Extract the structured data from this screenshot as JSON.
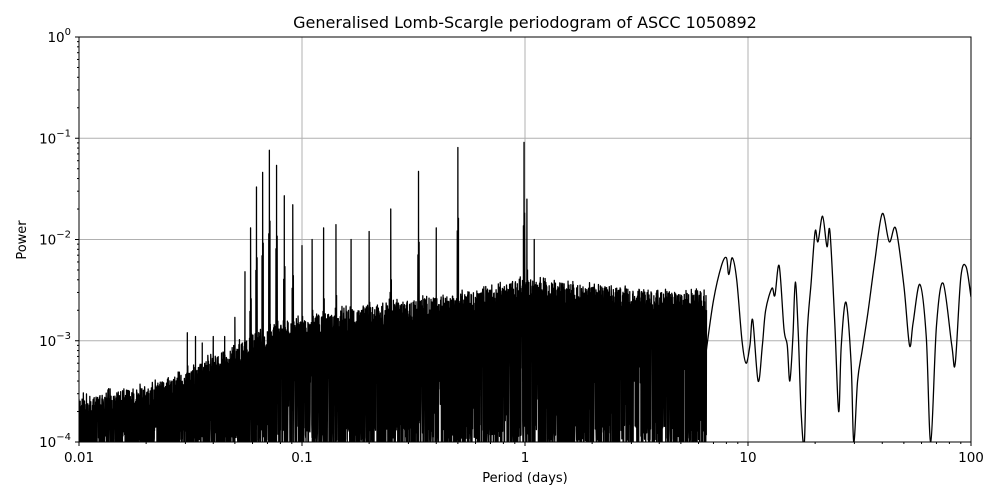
{
  "chart_data": {
    "type": "line",
    "title": "Generalised Lomb-Scargle periodogram of ASCC 1050892",
    "xlabel": "Period (days)",
    "ylabel": "Power",
    "xscale": "log",
    "yscale": "log",
    "xlim": [
      0.01,
      100
    ],
    "ylim": [
      0.0001,
      1
    ],
    "grid": true,
    "legend": null,
    "x_ticks": [
      {
        "value": 0.01,
        "label": "0.01"
      },
      {
        "value": 0.1,
        "label": "0.1"
      },
      {
        "value": 1,
        "label": "1"
      },
      {
        "value": 10,
        "label": "10"
      },
      {
        "value": 100,
        "label": "100"
      }
    ],
    "y_ticks": [
      {
        "value": 1,
        "base": "10",
        "exp": "0"
      },
      {
        "value": 0.1,
        "base": "10",
        "exp": "−1"
      },
      {
        "value": 0.01,
        "base": "10",
        "exp": "−2"
      },
      {
        "value": 0.001,
        "base": "10",
        "exp": "−3"
      },
      {
        "value": 0.0001,
        "base": "10",
        "exp": "−4"
      }
    ],
    "line_color": "#000000",
    "noise_envelope": [
      {
        "period": 0.01,
        "power": 0.00028
      },
      {
        "period": 0.02,
        "power": 0.00035
      },
      {
        "period": 0.03,
        "power": 0.0005
      },
      {
        "period": 0.05,
        "power": 0.0009
      },
      {
        "period": 0.08,
        "power": 0.0015
      },
      {
        "period": 0.15,
        "power": 0.002
      },
      {
        "period": 0.3,
        "power": 0.0025
      },
      {
        "period": 0.6,
        "power": 0.003
      },
      {
        "period": 1.0,
        "power": 0.004
      },
      {
        "period": 2.0,
        "power": 0.0035
      },
      {
        "period": 5.0,
        "power": 0.003
      },
      {
        "period": 7.0,
        "power": 0.003
      }
    ],
    "peaks": [
      {
        "period": 0.0306,
        "power": 0.0012
      },
      {
        "period": 0.0333,
        "power": 0.0011
      },
      {
        "period": 0.0357,
        "power": 0.00095
      },
      {
        "period": 0.04,
        "power": 0.0011
      },
      {
        "period": 0.045,
        "power": 0.0011
      },
      {
        "period": 0.05,
        "power": 0.0017
      },
      {
        "period": 0.0555,
        "power": 0.0048
      },
      {
        "period": 0.0588,
        "power": 0.013
      },
      {
        "period": 0.0625,
        "power": 0.033
      },
      {
        "period": 0.0666,
        "power": 0.046
      },
      {
        "period": 0.0714,
        "power": 0.076
      },
      {
        "period": 0.0769,
        "power": 0.054
      },
      {
        "period": 0.0833,
        "power": 0.027
      },
      {
        "period": 0.0909,
        "power": 0.022
      },
      {
        "period": 0.1,
        "power": 0.0087
      },
      {
        "period": 0.111,
        "power": 0.01
      },
      {
        "period": 0.125,
        "power": 0.013
      },
      {
        "period": 0.142,
        "power": 0.014
      },
      {
        "period": 0.166,
        "power": 0.01
      },
      {
        "period": 0.2,
        "power": 0.012
      },
      {
        "period": 0.25,
        "power": 0.02
      },
      {
        "period": 0.333,
        "power": 0.047
      },
      {
        "period": 0.4,
        "power": 0.013
      },
      {
        "period": 0.5,
        "power": 0.081
      },
      {
        "period": 0.99,
        "power": 0.091
      },
      {
        "period": 1.02,
        "power": 0.025
      },
      {
        "period": 1.1,
        "power": 0.01
      }
    ],
    "long_period_curve": [
      {
        "period": 6.5,
        "power": 0.0008
      },
      {
        "period": 7.0,
        "power": 0.0025
      },
      {
        "period": 7.6,
        "power": 0.0055
      },
      {
        "period": 8.0,
        "power": 0.0066
      },
      {
        "period": 8.2,
        "power": 0.0045
      },
      {
        "period": 8.5,
        "power": 0.0066
      },
      {
        "period": 8.9,
        "power": 0.004
      },
      {
        "period": 9.4,
        "power": 0.001
      },
      {
        "period": 9.8,
        "power": 0.0006
      },
      {
        "period": 10.2,
        "power": 0.0009
      },
      {
        "period": 10.5,
        "power": 0.0016
      },
      {
        "period": 11.1,
        "power": 0.0004
      },
      {
        "period": 11.6,
        "power": 0.0009
      },
      {
        "period": 12.0,
        "power": 0.002
      },
      {
        "period": 12.8,
        "power": 0.0033
      },
      {
        "period": 13.2,
        "power": 0.0028
      },
      {
        "period": 13.8,
        "power": 0.0055
      },
      {
        "period": 14.5,
        "power": 0.0013
      },
      {
        "period": 15.0,
        "power": 0.0009
      },
      {
        "period": 15.4,
        "power": 0.0004
      },
      {
        "period": 15.9,
        "power": 0.0011
      },
      {
        "period": 16.3,
        "power": 0.0038
      },
      {
        "period": 16.8,
        "power": 0.0012
      },
      {
        "period": 17.3,
        "power": 0.0002
      },
      {
        "period": 17.9,
        "power": 0.0001
      },
      {
        "period": 18.4,
        "power": 0.0011
      },
      {
        "period": 19.2,
        "power": 0.0038
      },
      {
        "period": 20.0,
        "power": 0.012
      },
      {
        "period": 20.6,
        "power": 0.0095
      },
      {
        "period": 21.6,
        "power": 0.017
      },
      {
        "period": 22.6,
        "power": 0.0085
      },
      {
        "period": 23.3,
        "power": 0.012
      },
      {
        "period": 24.5,
        "power": 0.0015
      },
      {
        "period": 25.5,
        "power": 0.0002
      },
      {
        "period": 26.2,
        "power": 0.0009
      },
      {
        "period": 27.5,
        "power": 0.0024
      },
      {
        "period": 29.0,
        "power": 0.0006
      },
      {
        "period": 29.8,
        "power": 0.0001
      },
      {
        "period": 31.0,
        "power": 0.0004
      },
      {
        "period": 32.5,
        "power": 0.0008
      },
      {
        "period": 34.5,
        "power": 0.0019
      },
      {
        "period": 37.0,
        "power": 0.006
      },
      {
        "period": 40.0,
        "power": 0.018
      },
      {
        "period": 43.0,
        "power": 0.0095
      },
      {
        "period": 46.0,
        "power": 0.0128
      },
      {
        "period": 50.0,
        "power": 0.0035
      },
      {
        "period": 53.0,
        "power": 0.0009
      },
      {
        "period": 55.0,
        "power": 0.0015
      },
      {
        "period": 59.0,
        "power": 0.0036
      },
      {
        "period": 63.0,
        "power": 0.0011
      },
      {
        "period": 66.0,
        "power": 0.0001
      },
      {
        "period": 70.0,
        "power": 0.0014
      },
      {
        "period": 75.0,
        "power": 0.0037
      },
      {
        "period": 82.0,
        "power": 0.0009
      },
      {
        "period": 85.0,
        "power": 0.0006
      },
      {
        "period": 90.0,
        "power": 0.0042
      },
      {
        "period": 95.0,
        "power": 0.0054
      },
      {
        "period": 100.0,
        "power": 0.0027
      }
    ]
  }
}
